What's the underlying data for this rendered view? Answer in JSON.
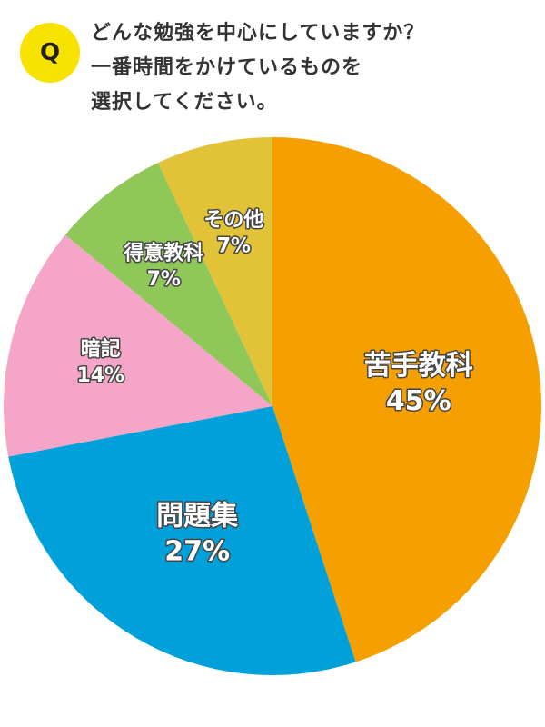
{
  "badge": "Q",
  "chart_data": {
    "type": "pie",
    "title": "どんな勉強を中心にしていますか？\n一番時間をかけているものを\n選択してください。",
    "categories": [
      "苦手教科",
      "問題集",
      "暗記",
      "得意教科",
      "その他"
    ],
    "values": [
      45,
      27,
      14,
      7,
      7
    ],
    "value_labels": [
      "45%",
      "27%",
      "14%",
      "7%",
      "7%"
    ],
    "colors": [
      "#f5a000",
      "#00a0db",
      "#f5a6c8",
      "#8fc758",
      "#e2c236"
    ]
  }
}
